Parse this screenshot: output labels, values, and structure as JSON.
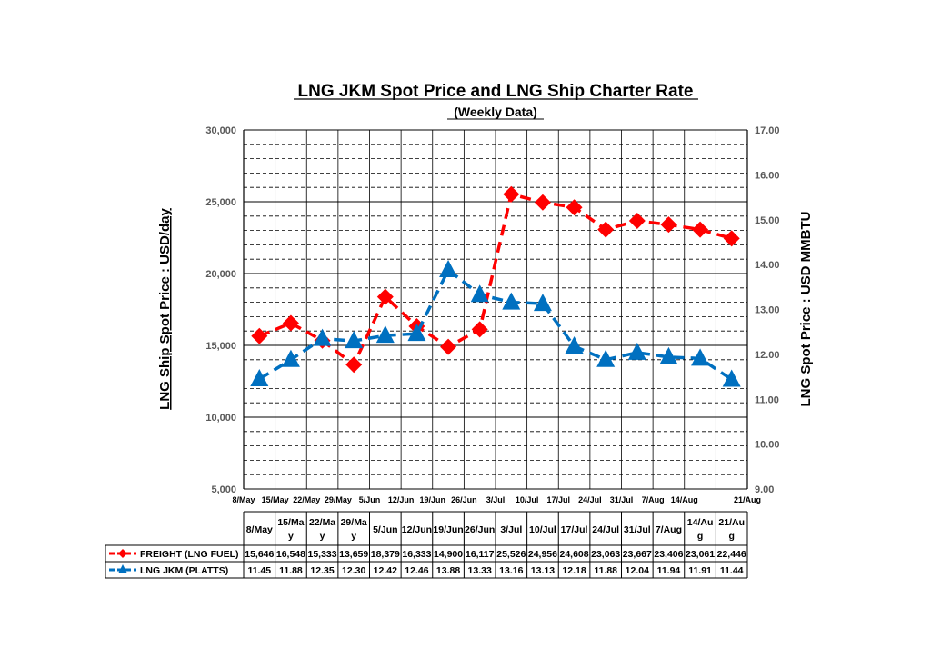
{
  "chart_data": {
    "type": "line",
    "title": "LNG JKM Spot Price and LNG Ship Charter Rate",
    "subtitle": "(Weekly Data)",
    "ylabel": "LNG Ship Spot Price : USD/day",
    "y2label": "LNG Spot Price : USD MMBTU",
    "ylim": [
      5000,
      30000
    ],
    "y2lim": [
      9.0,
      17.0
    ],
    "yticks": [
      "5,000",
      "10,000",
      "15,000",
      "20,000",
      "25,000",
      "30,000"
    ],
    "y2ticks": [
      "9.00",
      "10.00",
      "11.00",
      "12.00",
      "13.00",
      "14.00",
      "15.00",
      "16.00",
      "17.00"
    ],
    "categories": [
      "8/May",
      "15/May",
      "22/May",
      "29/May",
      "5/Jun",
      "12/Jun",
      "19/Jun",
      "26/Jun",
      "3/Jul",
      "10/Jul",
      "17/Jul",
      "24/Jul",
      "31/Jul",
      "7/Aug",
      "14/Aug",
      "21/Aug"
    ],
    "table_headers": [
      [
        "8/May"
      ],
      [
        "15/Ma",
        "y"
      ],
      [
        "22/Ma",
        "y"
      ],
      [
        "29/Ma",
        "y"
      ],
      [
        "5/Jun"
      ],
      [
        "12/Jun"
      ],
      [
        "19/Jun"
      ],
      [
        "26/Jun"
      ],
      [
        "3/Jul"
      ],
      [
        "10/Jul"
      ],
      [
        "17/Jul"
      ],
      [
        "24/Jul"
      ],
      [
        "31/Jul"
      ],
      [
        "7/Aug"
      ],
      [
        "14/Au",
        "g"
      ],
      [
        "21/Au",
        "g"
      ]
    ],
    "legend_placement": "bottom-table",
    "grid": true,
    "series": [
      {
        "name": "FREIGHT (LNG FUEL)",
        "axis": "left",
        "color": "#FF0000",
        "marker": "diamond",
        "values": [
          15646,
          16548,
          15333,
          13659,
          18379,
          16333,
          14900,
          16117,
          25526,
          24956,
          24608,
          23063,
          23667,
          23406,
          23061,
          22446
        ],
        "labels": [
          "15,646",
          "16,548",
          "15,333",
          "13,659",
          "18,379",
          "16,333",
          "14,900",
          "16,117",
          "25,526",
          "24,956",
          "24,608",
          "23,063",
          "23,667",
          "23,406",
          "23,061",
          "22,446"
        ]
      },
      {
        "name": "LNG JKM (PLATTS)",
        "axis": "right",
        "color": "#0070C0",
        "marker": "triangle",
        "values": [
          11.45,
          11.88,
          12.35,
          12.3,
          12.42,
          12.46,
          13.88,
          13.33,
          13.16,
          13.13,
          12.18,
          11.88,
          12.04,
          11.94,
          11.91,
          11.44
        ],
        "labels": [
          "11.45",
          "11.88",
          "12.35",
          "12.30",
          "12.42",
          "12.46",
          "13.88",
          "13.33",
          "13.16",
          "13.13",
          "12.18",
          "11.88",
          "12.04",
          "11.94",
          "11.91",
          "11.44"
        ]
      }
    ]
  }
}
